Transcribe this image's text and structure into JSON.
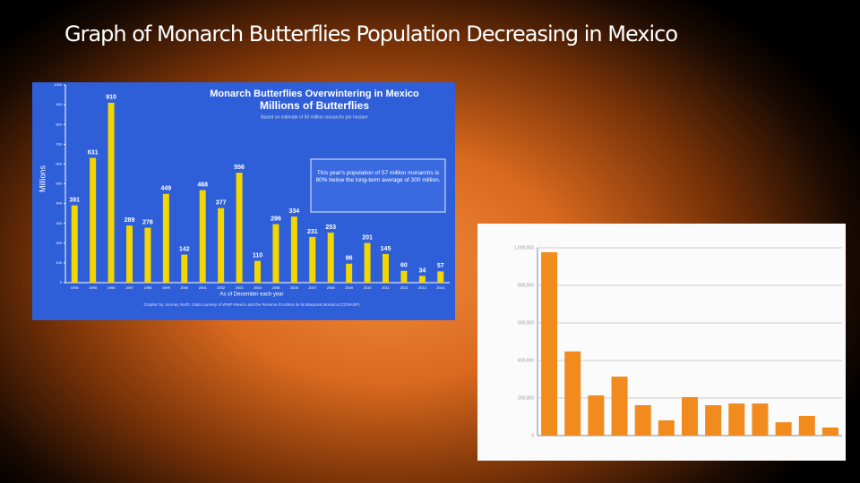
{
  "title": "Graph of Monarch Butterflies Population Decreasing in Mexico",
  "chart_data": [
    {
      "type": "bar",
      "title": "Monarch Butterflies Overwintering in Mexico",
      "subtitle": "Millions of Butterflies",
      "note": "Based on estimate of 50 million monarchs per hectare",
      "annotation": "This year's population of 57 million monarchs is 80% below the long-term average of 300 million.",
      "source": "Graphic by Journey North. Data courtesy of WWF-Mexico and the Reserva Ecosfera de la Mariposa Monarca (CONANP)",
      "ylabel": "Millions",
      "xlabel": "As of December each year",
      "categories": [
        "1994",
        "1995",
        "1996",
        "1997",
        "1998",
        "1999",
        "2000",
        "2001",
        "2002",
        "2003",
        "2004",
        "2005",
        "2006",
        "2007",
        "2008",
        "2009",
        "2010",
        "2011",
        "2012",
        "2013",
        "2014"
      ],
      "values": [
        391,
        631,
        910,
        289,
        278,
        449,
        142,
        468,
        377,
        556,
        110,
        296,
        334,
        231,
        253,
        96,
        201,
        145,
        60,
        34,
        57
      ],
      "color": "#f2d600",
      "ylim": [
        0,
        1000
      ],
      "yticks": [
        0,
        100,
        200,
        300,
        400,
        500,
        600,
        700,
        800,
        900,
        1000
      ],
      "grid": false
    },
    {
      "type": "bar",
      "categories": [
        null,
        null,
        null,
        null,
        null,
        null,
        null,
        null,
        null,
        null,
        null,
        null,
        null
      ],
      "values": [
        976000,
        448000,
        214000,
        314000,
        162000,
        81000,
        205000,
        162000,
        171000,
        171000,
        71000,
        105000,
        43000
      ],
      "color": "#f28b1e",
      "ylim": [
        0,
        1000000
      ],
      "yticks": [
        0,
        {
          "value": 200000,
          "label": "200,000"
        },
        {
          "value": 400000,
          "label": "400,000"
        },
        {
          "value": 600000,
          "label": "600,000"
        },
        {
          "value": 800000,
          "label": "800,000"
        },
        {
          "value": 1000000,
          "label": "1,000,000"
        }
      ],
      "grid": true
    }
  ]
}
